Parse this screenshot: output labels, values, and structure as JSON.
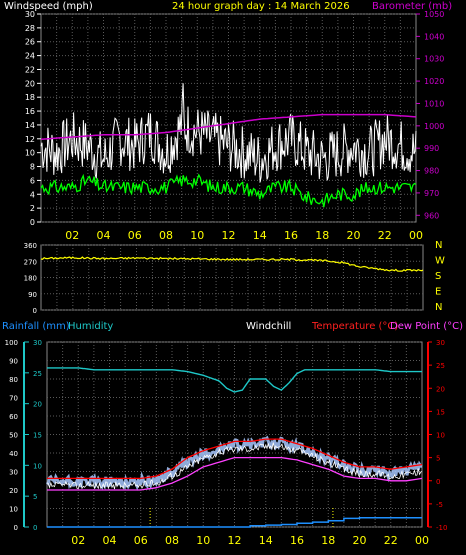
{
  "colors": {
    "background": "#000000",
    "grid": "#5a5a5a",
    "axis_text": "#ffffff",
    "wind_gust": "#ffffff",
    "wind_avg": "#00ff00",
    "barometer": "#cc00cc",
    "direction": "#ffff00",
    "rainfall": "#1e90ff",
    "humidity": "#1ec8c8",
    "windchill": "#ffffff",
    "temperature": "#ff0000",
    "dewpoint": "#ff40ff",
    "temp_band": "#a8c8ff",
    "time_labels": "#ffff00"
  },
  "chart_data": [
    {
      "type": "line",
      "title": "24 hour graph day : 14 March 2026",
      "left_axis_label": "Windspeed (mph)",
      "right_axis_label": "Barometer (mb)",
      "x_ticks": [
        "02",
        "04",
        "06",
        "08",
        "10",
        "12",
        "14",
        "16",
        "18",
        "20",
        "22",
        "00"
      ],
      "y_left_ticks": [
        0,
        2,
        4,
        6,
        8,
        10,
        12,
        14,
        16,
        18,
        20,
        22,
        24,
        26,
        28,
        30
      ],
      "y_left_range": [
        0,
        30
      ],
      "y_right_ticks": [
        960,
        970,
        980,
        990,
        1000,
        1010,
        1020,
        1030,
        1040,
        1050
      ],
      "y_right_range": [
        957,
        1050
      ],
      "grid": true,
      "series": [
        {
          "name": "Windspeed (mph)",
          "role": "gust",
          "x_hours": [
            0,
            1,
            2,
            3,
            4,
            5,
            6,
            7,
            8,
            9,
            10,
            11,
            12,
            13,
            14,
            15,
            16,
            17,
            18,
            19,
            20,
            21,
            22,
            23,
            24
          ],
          "values": [
            11,
            10,
            12,
            11,
            9,
            12,
            11,
            13,
            10,
            14,
            13,
            12,
            11,
            10,
            9,
            11,
            12,
            10,
            9,
            10,
            11,
            10,
            12,
            11,
            10
          ]
        },
        {
          "name": "Windspeed (mph)",
          "role": "average",
          "x_hours": [
            0,
            1,
            2,
            3,
            4,
            5,
            6,
            7,
            8,
            9,
            10,
            11,
            12,
            13,
            14,
            15,
            16,
            17,
            18,
            19,
            20,
            21,
            22,
            23,
            24
          ],
          "values": [
            5,
            5,
            5,
            6,
            5,
            5,
            5,
            5,
            5,
            6,
            6,
            5,
            5,
            5,
            4,
            5,
            5,
            3.5,
            3,
            4,
            4,
            5,
            5,
            5,
            5
          ]
        },
        {
          "name": "Barometer (mb)",
          "x_hours": [
            0,
            2,
            4,
            6,
            8,
            10,
            12,
            14,
            16,
            18,
            20,
            22,
            24
          ],
          "values": [
            994,
            995,
            996,
            996,
            997,
            999,
            1001,
            1003,
            1004,
            1005,
            1005,
            1005,
            1004
          ]
        }
      ]
    },
    {
      "type": "line",
      "y_left_ticks": [
        0,
        90,
        180,
        270,
        360
      ],
      "y_left_range": [
        0,
        360
      ],
      "y_right_ticks": [
        "N",
        "W",
        "S",
        "E",
        "N"
      ],
      "grid": true,
      "series": [
        {
          "name": "Wind direction",
          "x_hours": [
            0,
            2,
            4,
            6,
            8,
            10,
            12,
            14,
            16,
            18,
            19,
            20,
            21,
            22,
            24
          ],
          "values": [
            285,
            290,
            285,
            288,
            285,
            283,
            280,
            280,
            280,
            272,
            262,
            240,
            230,
            220,
            220
          ]
        }
      ]
    },
    {
      "type": "line",
      "legend": [
        "Rainfall (mm)",
        "Humidity",
        "Windchill",
        "Temperature (°C)",
        "Dew Point (°C)"
      ],
      "x_ticks": [
        "02",
        "04",
        "06",
        "08",
        "10",
        "12",
        "14",
        "16",
        "18",
        "20",
        "22",
        "00"
      ],
      "y_left1_ticks": [
        0,
        10,
        20,
        30,
        40,
        50,
        60,
        70,
        80,
        90,
        100
      ],
      "y_left1_range": [
        0,
        100
      ],
      "y_left2_ticks": [
        0,
        5,
        10,
        15,
        20,
        25,
        30
      ],
      "y_left2_range": [
        0,
        30
      ],
      "y_right_ticks": [
        -10,
        -5,
        0,
        5,
        10,
        15,
        20,
        25,
        30
      ],
      "y_right_range": [
        -10,
        30
      ],
      "grid": true,
      "series": [
        {
          "name": "Humidity",
          "x_hours": [
            0,
            1,
            2,
            3,
            4,
            5,
            6,
            7,
            8,
            9,
            10,
            11,
            11.5,
            12,
            12.5,
            13,
            14,
            14.5,
            15,
            15.5,
            16,
            16.5,
            17,
            18,
            19,
            20,
            21,
            22,
            23,
            24
          ],
          "values": [
            86,
            86,
            86,
            85,
            85,
            85,
            85,
            85,
            85,
            84,
            82,
            79,
            75,
            73,
            74,
            80,
            80,
            76,
            74,
            78,
            83,
            85,
            85,
            85,
            85,
            85,
            85,
            84,
            84,
            84
          ]
        },
        {
          "name": "Temperature (°C)",
          "x_hours": [
            0,
            1,
            2,
            3,
            4,
            5,
            6,
            7,
            8,
            9,
            10,
            11,
            12,
            13,
            14,
            15,
            16,
            17,
            18,
            19,
            20,
            21,
            22,
            23,
            24
          ],
          "values": [
            0.5,
            0.5,
            0.5,
            0.5,
            0.5,
            0.5,
            0.5,
            1,
            2.5,
            5,
            6.5,
            7.5,
            8.5,
            8.5,
            9,
            9,
            8,
            7,
            5.5,
            4,
            3,
            3,
            2.5,
            3,
            3.5
          ]
        },
        {
          "name": "Windchill",
          "x_hours": [
            0,
            1,
            2,
            3,
            4,
            5,
            6,
            7,
            8,
            9,
            10,
            11,
            12,
            13,
            14,
            15,
            16,
            17,
            18,
            19,
            20,
            21,
            22,
            23,
            24
          ],
          "values": [
            -1,
            -1,
            -1,
            -1,
            -1,
            -1,
            -1,
            -0.5,
            1,
            3,
            5,
            6,
            7,
            7,
            7.5,
            7.5,
            6.5,
            5.5,
            4,
            2.5,
            1.5,
            1.5,
            1,
            1.5,
            2
          ]
        },
        {
          "name": "Dew Point (°C)",
          "x_hours": [
            0,
            1,
            2,
            3,
            4,
            5,
            6,
            7,
            8,
            9,
            10,
            11,
            12,
            13,
            14,
            15,
            16,
            17,
            18,
            19,
            20,
            21,
            22,
            23,
            24
          ],
          "values": [
            -2,
            -2,
            -2,
            -2,
            -2,
            -2,
            -2,
            -1.5,
            -0.5,
            1,
            3,
            4,
            5,
            5,
            5,
            5,
            4.5,
            3.5,
            2.5,
            1,
            0.5,
            0.5,
            0,
            0,
            0.5
          ]
        },
        {
          "name": "Rainfall (mm)",
          "x_hours": [
            0,
            12,
            13,
            14,
            15,
            16,
            17,
            18,
            19,
            20,
            21,
            22,
            23,
            24
          ],
          "values": [
            0,
            0,
            0.2,
            0.3,
            0.4,
            0.6,
            0.8,
            1,
            1.4,
            1.5,
            1.5,
            1.5,
            1.5,
            1.5
          ]
        }
      ]
    }
  ]
}
